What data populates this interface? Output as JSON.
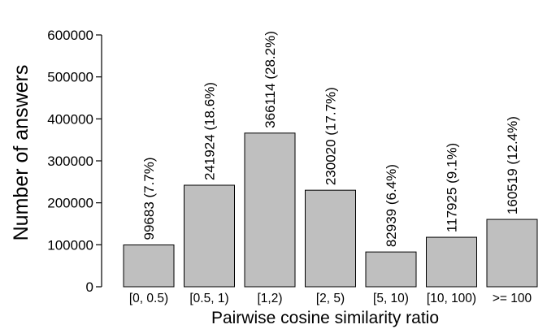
{
  "chart_data": {
    "type": "bar",
    "categories": [
      "[0, 0.5)",
      "[0.5, 1)",
      "[1,2)",
      "[2, 5)",
      "[5, 10)",
      "[10, 100)",
      ">= 100"
    ],
    "values": [
      99683,
      241924,
      366114,
      230020,
      82939,
      117925,
      160519
    ],
    "data_labels": [
      "99683 (7.7%)",
      "241924 (18.6%)",
      "366114 (28.2%)",
      "230020 (17.7%)",
      "82939 (6.4%)",
      "117925 (9.1%)",
      "160519 (12.4%)"
    ],
    "xlabel": "Pairwise cosine similarity ratio",
    "ylabel": "Number of answers",
    "ylim": [
      0,
      600000
    ],
    "yticks": [
      0,
      100000,
      200000,
      300000,
      400000,
      500000,
      600000
    ],
    "ytick_labels": [
      "0",
      "100000",
      "200000",
      "300000",
      "400000",
      "500000",
      "600000"
    ],
    "grid": false,
    "bar_color": "#bfbfbf",
    "bar_edge_color": "#000000"
  }
}
